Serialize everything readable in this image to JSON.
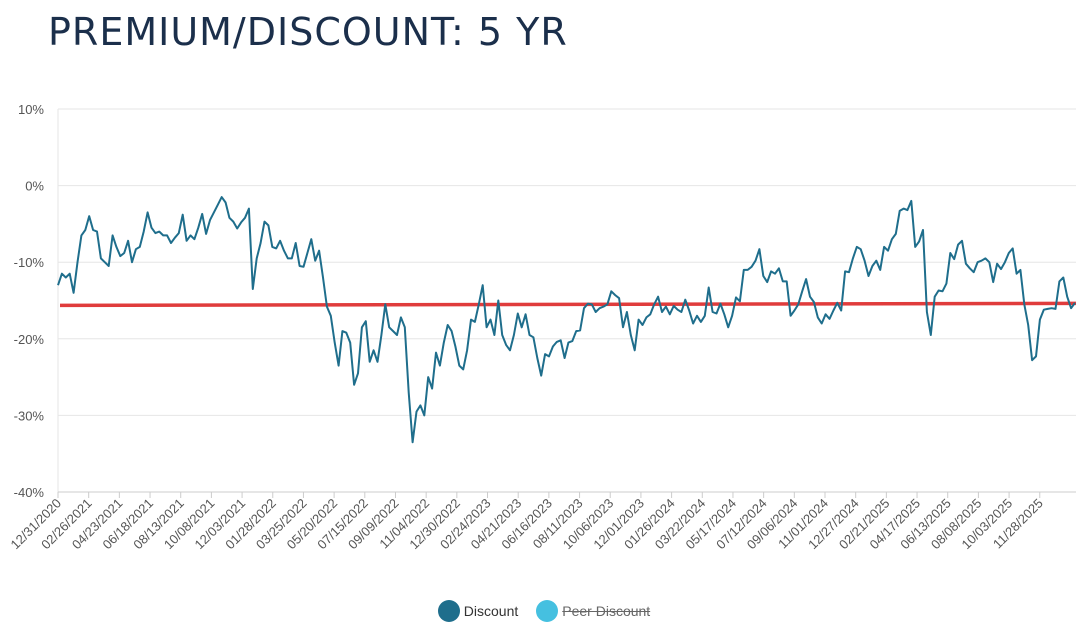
{
  "title": "PREMIUM/DISCOUNT: 5 YR",
  "colors": {
    "series": "#1f6e8c",
    "reference": "#e03c3c",
    "peer": "#45c0e0",
    "grid": "#e6e6e6",
    "text": "#555555"
  },
  "legend": [
    {
      "label": "Discount",
      "color": "#1f6e8c",
      "icon": "circle-marker",
      "hidden": false
    },
    {
      "label": "Peer Discount",
      "color": "#45c0e0",
      "icon": "circle-marker",
      "hidden": true
    }
  ],
  "chart_data": {
    "type": "line",
    "title": "PREMIUM/DISCOUNT: 5 YR",
    "xlabel": "",
    "ylabel": "",
    "ylim": [
      -40,
      10
    ],
    "y_ticks": [
      "10%",
      "0%",
      "-10%",
      "-20%",
      "-30%",
      "-40%"
    ],
    "y_tick_values": [
      10,
      0,
      -10,
      -20,
      -30,
      -40
    ],
    "x_ticks": [
      "12/31/2020",
      "02/26/2021",
      "04/23/2021",
      "06/18/2021",
      "08/13/2021",
      "10/08/2021",
      "12/03/2021",
      "01/28/2022",
      "03/25/2022",
      "05/20/2022",
      "07/15/2022",
      "09/09/2022",
      "11/04/2022",
      "12/30/2022",
      "02/24/2023",
      "04/21/2023",
      "06/16/2023",
      "08/11/2023",
      "10/06/2023",
      "12/01/2023",
      "01/26/2024",
      "03/22/2024",
      "05/17/2024",
      "07/12/2024",
      "09/06/2024",
      "11/01/2024",
      "12/27/2024",
      "02/21/2025",
      "04/17/2025",
      "06/13/2025",
      "08/08/2025",
      "10/03/2025",
      "11/28/2025"
    ],
    "grid": true,
    "legend_position": "bottom-center",
    "reference_line": {
      "value": -15.5,
      "color": "#e03c3c"
    },
    "series": [
      {
        "name": "Discount",
        "color": "#1f6e8c",
        "values": [
          -13,
          -11.5,
          -12,
          -11.5,
          -14,
          -10,
          -6.5,
          -5.8,
          -4,
          -5.8,
          -6,
          -9.5,
          -10,
          -10.5,
          -6.5,
          -8,
          -9.2,
          -8.8,
          -7.2,
          -10,
          -8.3,
          -8,
          -6,
          -3.5,
          -5.5,
          -6.2,
          -6,
          -6.5,
          -6.5,
          -7.5,
          -6.8,
          -6.2,
          -3.8,
          -7.2,
          -6.5,
          -7,
          -5.5,
          -3.7,
          -6.3,
          -4.5,
          -3.5,
          -2.5,
          -1.5,
          -2.2,
          -4.2,
          -4.7,
          -5.6,
          -4.8,
          -4.2,
          -3,
          -13.5,
          -9.5,
          -7.5,
          -4.7,
          -5.2,
          -8,
          -8.2,
          -7.2,
          -8.5,
          -9.5,
          -9.5,
          -7.5,
          -10.5,
          -10.6,
          -8.8,
          -7,
          -9.8,
          -8.5,
          -12,
          -15.8,
          -17,
          -20.5,
          -23.5,
          -19,
          -19.2,
          -20.5,
          -26,
          -24.5,
          -18.5,
          -17.7,
          -23,
          -21.5,
          -23,
          -19.5,
          -15.5,
          -18.5,
          -19,
          -19.5,
          -17.2,
          -18.5,
          -27,
          -33.5,
          -29.5,
          -28.7,
          -30,
          -25,
          -26.5,
          -21.8,
          -23.5,
          -20.5,
          -18.2,
          -19,
          -21,
          -23.5,
          -24,
          -21.5,
          -17.5,
          -17.8,
          -15.5,
          -13,
          -18.5,
          -17.5,
          -19.5,
          -15,
          -19.5,
          -20.8,
          -21.5,
          -19.5,
          -16.7,
          -18.5,
          -16.8,
          -19.5,
          -19.8,
          -22.5,
          -24.8,
          -22,
          -22.3,
          -21,
          -20.4,
          -20.2,
          -22.5,
          -20.5,
          -20.3,
          -19,
          -18.9,
          -16,
          -15.4,
          -15.5,
          -16.5,
          -16,
          -15.8,
          -15.5,
          -13.8,
          -14.3,
          -14.7,
          -18.5,
          -16.5,
          -19.5,
          -21.5,
          -17.5,
          -18.2,
          -17.2,
          -16.8,
          -15.5,
          -14.5,
          -16.5,
          -15.8,
          -16.8,
          -15.7,
          -16.2,
          -16.5,
          -14.9,
          -16.3,
          -18,
          -17,
          -17.8,
          -17,
          -13.3,
          -16.5,
          -16.7,
          -15.4,
          -16.8,
          -18.5,
          -17,
          -14.6,
          -15.1,
          -11,
          -11,
          -10.6,
          -9.8,
          -8.3,
          -11.8,
          -12.6,
          -11.2,
          -11.5,
          -10.8,
          -12.5,
          -12.5,
          -17,
          -16.3,
          -15.5,
          -13.8,
          -12.2,
          -14.5,
          -15.2,
          -17.2,
          -18,
          -16.8,
          -17.4,
          -16.3,
          -15.3,
          -16.3,
          -11.2,
          -11.3,
          -9.5,
          -8,
          -8.3,
          -9.8,
          -11.8,
          -10.5,
          -9.8,
          -11,
          -8,
          -8.5,
          -7,
          -6.3,
          -3.3,
          -3,
          -3.2,
          -2,
          -8,
          -7.3,
          -5.8,
          -16.5,
          -19.5,
          -14.5,
          -13.7,
          -13.8,
          -12.8,
          -8.8,
          -9.6,
          -7.7,
          -7.2,
          -10.2,
          -10.8,
          -11.3,
          -10,
          -9.8,
          -9.5,
          -10,
          -12.6,
          -10.2,
          -10.9,
          -10,
          -8.8,
          -8.2,
          -11.5,
          -11,
          -15.5,
          -18.2,
          -22.8,
          -22.3,
          -17.5,
          -16.2,
          -16.1,
          -16,
          -16.1,
          -12.5,
          -12,
          -14.5,
          -16,
          -15.3
        ]
      }
    ]
  }
}
